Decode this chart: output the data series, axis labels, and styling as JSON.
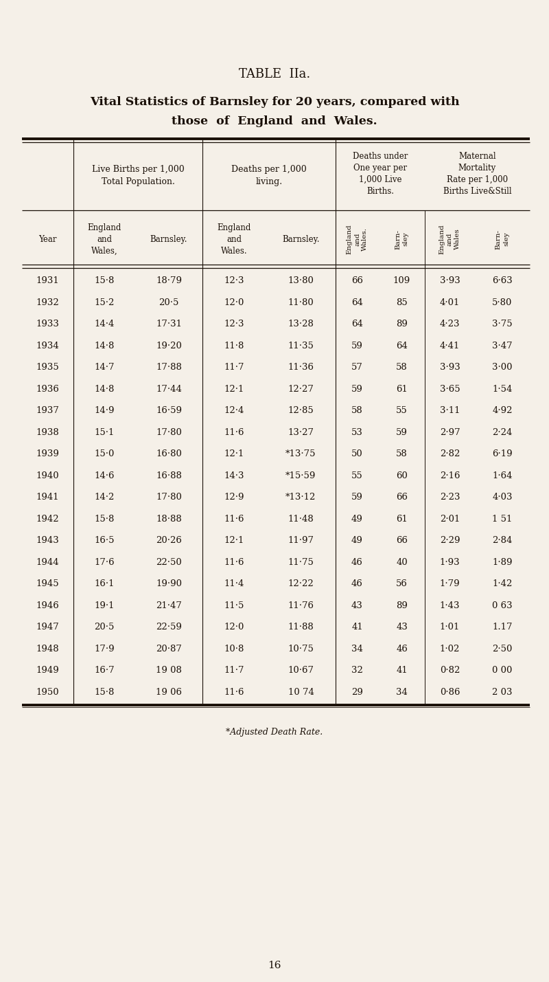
{
  "title_line1": "TABLE  IIa.",
  "title_line2": "Vital Statistics of Barnsley for 20 years, compared with",
  "title_line3": "those  of  England  and  Wales.",
  "rows": [
    [
      "1931",
      "15·8",
      "18·79",
      "12·3",
      "13·80",
      "66",
      "109",
      "3·93",
      "6·63"
    ],
    [
      "1932",
      "15·2",
      "20·5",
      "12·0",
      "11·80",
      "64",
      "85",
      "4·01",
      "5·80"
    ],
    [
      "1933",
      "14·4",
      "17·31",
      "12·3",
      "13·28",
      "64",
      "89",
      "4·23",
      "3·75"
    ],
    [
      "1934",
      "14·8",
      "19·20",
      "11·8",
      "11·35",
      "59",
      "64",
      "4·41",
      "3·47"
    ],
    [
      "1935",
      "14·7",
      "17·88",
      "11·7",
      "11·36",
      "57",
      "58",
      "3·93",
      "3·00"
    ],
    [
      "1936",
      "14·8",
      "17·44",
      "12·1",
      "12·27",
      "59",
      "61",
      "3·65",
      "1·54"
    ],
    [
      "1937",
      "14·9",
      "16·59",
      "12·4",
      "12·85",
      "58",
      "55",
      "3·11",
      "4·92"
    ],
    [
      "1938",
      "15·1",
      "17·80",
      "11·6",
      "13·27",
      "53",
      "59",
      "2·97",
      "2·24"
    ],
    [
      "1939",
      "15·0",
      "16·80",
      "12·1",
      "*13·75",
      "50",
      "58",
      "2·82",
      "6·19"
    ],
    [
      "1940",
      "14·6",
      "16·88",
      "14·3",
      "*15·59",
      "55",
      "60",
      "2·16",
      "1·64"
    ],
    [
      "1941",
      "14·2",
      "17·80",
      "12·9",
      "*13·12",
      "59",
      "66",
      "2·23",
      "4·03"
    ],
    [
      "1942",
      "15·8",
      "18·88",
      "11·6",
      "11·48",
      "49",
      "61",
      "2·01",
      "1 51"
    ],
    [
      "1943",
      "16·5",
      "20·26",
      "12·1",
      "11·97",
      "49",
      "66",
      "2·29",
      "2·84"
    ],
    [
      "1944",
      "17·6",
      "22·50",
      "11·6",
      "11·75",
      "46",
      "40",
      "1·93",
      "1·89"
    ],
    [
      "1945",
      "16·1",
      "19·90",
      "11·4",
      "12·22",
      "46",
      "56",
      "1·79",
      "1·42"
    ],
    [
      "1946",
      "19·1",
      "21·47",
      "11·5",
      "11·76",
      "43",
      "89",
      "1·43",
      "0 63"
    ],
    [
      "1947",
      "20·5",
      "22·59",
      "12·0",
      "11·88",
      "41",
      "43",
      "1·01",
      "1.17"
    ],
    [
      "1948",
      "17·9",
      "20·87",
      "10·8",
      "10·75",
      "34",
      "46",
      "1·02",
      "2·50"
    ],
    [
      "1949",
      "16·7",
      "19 08",
      "11·7",
      "10·67",
      "32",
      "41",
      "0·82",
      "0 00"
    ],
    [
      "1950",
      "15·8",
      "19 06",
      "11·6",
      "10 74",
      "29",
      "34",
      "0·86",
      "2 03"
    ]
  ],
  "footnote": "*Adjusted Death Rate.",
  "page_number": "16",
  "bg_color": "#f5f0e8",
  "text_color": "#1a1008"
}
